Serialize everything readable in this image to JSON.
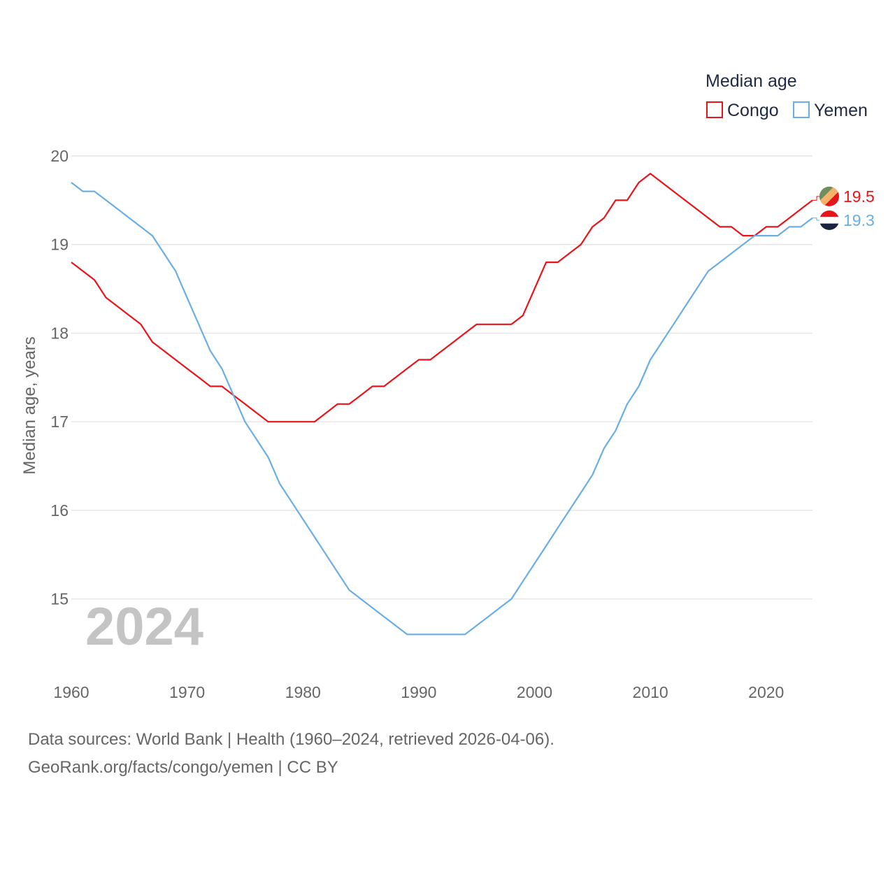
{
  "chart_data": {
    "type": "line",
    "legend_title": "Median age",
    "ylabel": "Median age, years",
    "xlabel": "",
    "current_year": "2024",
    "xlim": [
      1960,
      2024
    ],
    "ylim": [
      14.2,
      20
    ],
    "x_ticks": [
      1960,
      1970,
      1980,
      1990,
      2000,
      2010,
      2020
    ],
    "y_ticks": [
      15,
      16,
      17,
      18,
      19,
      20
    ],
    "grid": true,
    "legend_position": "top-right",
    "series": [
      {
        "name": "Congo",
        "color": "#e8141a",
        "end_label": "19.5",
        "flag_icon": "congo-flag-icon",
        "x": [
          1960,
          1961,
          1962,
          1963,
          1964,
          1965,
          1966,
          1967,
          1968,
          1969,
          1970,
          1971,
          1972,
          1973,
          1974,
          1975,
          1976,
          1977,
          1978,
          1979,
          1980,
          1981,
          1982,
          1983,
          1984,
          1985,
          1986,
          1987,
          1988,
          1989,
          1990,
          1991,
          1992,
          1993,
          1994,
          1995,
          1996,
          1997,
          1998,
          1999,
          2000,
          2001,
          2002,
          2003,
          2004,
          2005,
          2006,
          2007,
          2008,
          2009,
          2010,
          2011,
          2012,
          2013,
          2014,
          2015,
          2016,
          2017,
          2018,
          2019,
          2020,
          2021,
          2022,
          2023,
          2024
        ],
        "values": [
          18.8,
          18.7,
          18.6,
          18.4,
          18.3,
          18.2,
          18.1,
          17.9,
          17.8,
          17.7,
          17.6,
          17.5,
          17.4,
          17.4,
          17.3,
          17.2,
          17.1,
          17.0,
          17.0,
          17.0,
          17.0,
          17.0,
          17.1,
          17.2,
          17.2,
          17.3,
          17.4,
          17.4,
          17.5,
          17.6,
          17.7,
          17.7,
          17.8,
          17.9,
          18.0,
          18.1,
          18.1,
          18.1,
          18.1,
          18.2,
          18.5,
          18.8,
          18.8,
          18.9,
          19.0,
          19.2,
          19.3,
          19.5,
          19.5,
          19.7,
          19.8,
          19.7,
          19.6,
          19.5,
          19.4,
          19.3,
          19.2,
          19.2,
          19.1,
          19.1,
          19.2,
          19.2,
          19.3,
          19.4,
          19.5
        ]
      },
      {
        "name": "Yemen",
        "color": "#6aaee6",
        "end_label": "19.3",
        "flag_icon": "yemen-flag-icon",
        "x": [
          1960,
          1961,
          1962,
          1963,
          1964,
          1965,
          1966,
          1967,
          1968,
          1969,
          1970,
          1971,
          1972,
          1973,
          1974,
          1975,
          1976,
          1977,
          1978,
          1979,
          1980,
          1981,
          1982,
          1983,
          1984,
          1985,
          1986,
          1987,
          1988,
          1989,
          1990,
          1991,
          1992,
          1993,
          1994,
          1995,
          1996,
          1997,
          1998,
          1999,
          2000,
          2001,
          2002,
          2003,
          2004,
          2005,
          2006,
          2007,
          2008,
          2009,
          2010,
          2011,
          2012,
          2013,
          2014,
          2015,
          2016,
          2017,
          2018,
          2019,
          2020,
          2021,
          2022,
          2023,
          2024
        ],
        "values": [
          19.7,
          19.6,
          19.6,
          19.5,
          19.4,
          19.3,
          19.2,
          19.1,
          18.9,
          18.7,
          18.4,
          18.1,
          17.8,
          17.6,
          17.3,
          17.0,
          16.8,
          16.6,
          16.3,
          16.1,
          15.9,
          15.7,
          15.5,
          15.3,
          15.1,
          15.0,
          14.9,
          14.8,
          14.7,
          14.6,
          14.6,
          14.6,
          14.6,
          14.6,
          14.6,
          14.7,
          14.8,
          14.9,
          15.0,
          15.2,
          15.4,
          15.6,
          15.8,
          16.0,
          16.2,
          16.4,
          16.7,
          16.9,
          17.2,
          17.4,
          17.7,
          17.9,
          18.1,
          18.3,
          18.5,
          18.7,
          18.8,
          18.9,
          19.0,
          19.1,
          19.1,
          19.1,
          19.2,
          19.2,
          19.3
        ]
      }
    ]
  },
  "footer": {
    "sources": "Data sources: World Bank | Health (1960–2024, retrieved 2026-04-06).",
    "attribution": "GeoRank.org/facts/congo/yemen | CC BY"
  }
}
